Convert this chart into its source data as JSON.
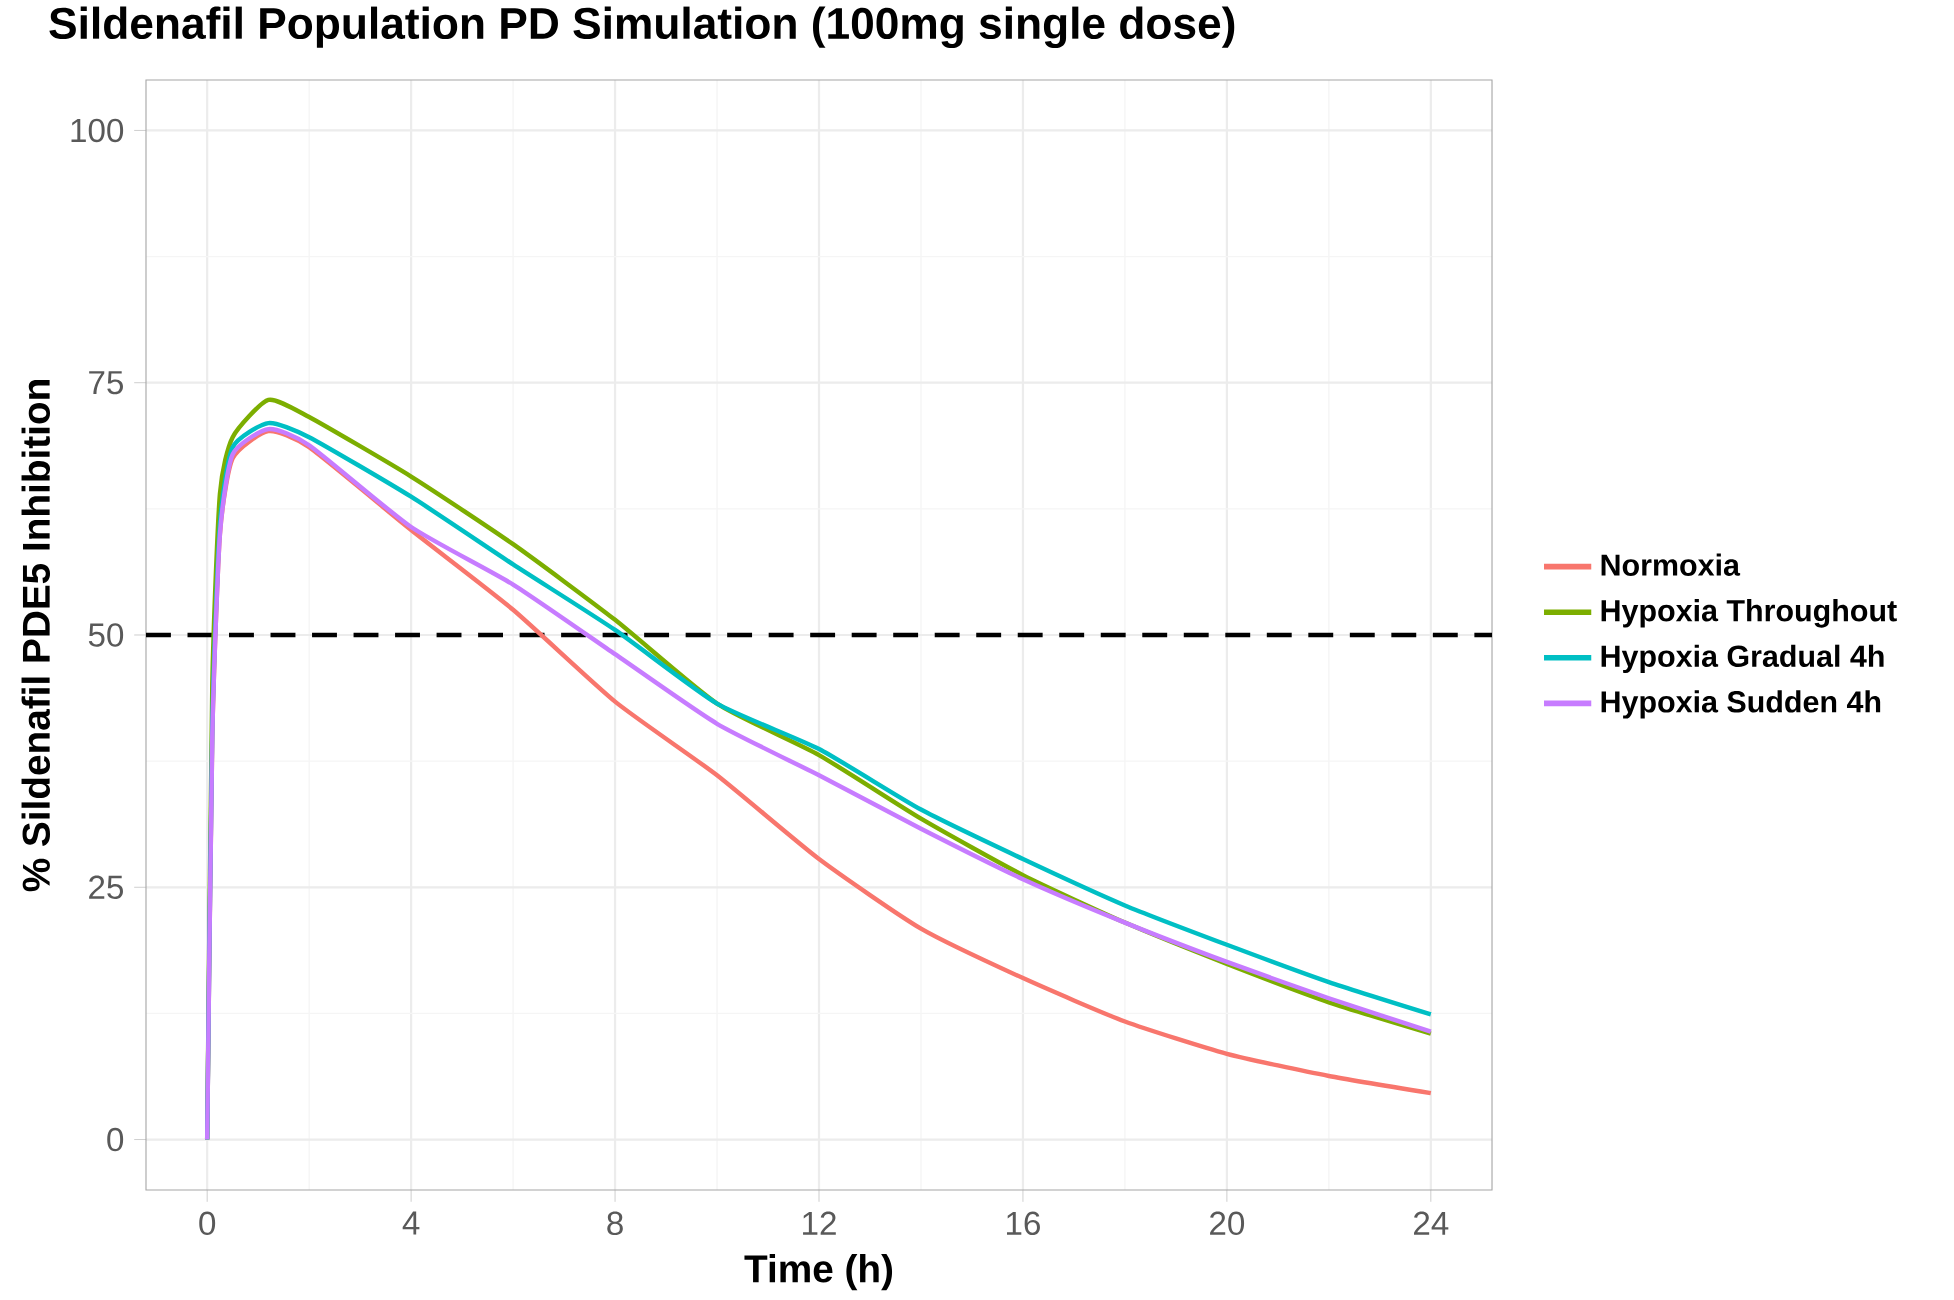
{
  "chart_data": {
    "type": "line",
    "title": "Sildenafil Population PD Simulation (100mg single dose)",
    "xlabel": "Time (h)",
    "ylabel": "% Sildenafil PDE5 Inhibition",
    "x": [
      0,
      0.1,
      0.25,
      0.5,
      1.2,
      2,
      4,
      6,
      8,
      10,
      12,
      14,
      16,
      18,
      20,
      22,
      24
    ],
    "series": [
      {
        "name": "Normoxia",
        "color": "#f8766d",
        "values": [
          0,
          40,
          60,
          67.5,
          70.2,
          68.6,
          60.4,
          52.5,
          43.4,
          36.1,
          27.8,
          20.9,
          16.0,
          11.7,
          8.5,
          6.3,
          4.6
        ]
      },
      {
        "name": "Hypoxia Throughout",
        "color": "#7cae00",
        "values": [
          0,
          45,
          64,
          69.6,
          73.3,
          71.6,
          65.7,
          59.0,
          51.5,
          43.2,
          38.1,
          31.8,
          26.2,
          21.5,
          17.4,
          13.6,
          10.5
        ]
      },
      {
        "name": "Hypoxia Gradual 4h",
        "color": "#00bfc4",
        "values": [
          0,
          41,
          61,
          68.6,
          71.0,
          69.6,
          63.7,
          57.0,
          50.5,
          43.2,
          38.7,
          32.7,
          27.8,
          23.2,
          19.3,
          15.6,
          12.4
        ]
      },
      {
        "name": "Hypoxia Sudden 4h",
        "color": "#c77cff",
        "values": [
          0,
          40,
          60,
          67.9,
          70.4,
          68.8,
          60.7,
          55.0,
          48.1,
          41.2,
          36.1,
          30.8,
          25.8,
          21.5,
          17.6,
          14.0,
          10.7
        ]
      }
    ],
    "xlim": [
      -1.2,
      25.2
    ],
    "ylim": [
      -5,
      105
    ],
    "xticks": [
      0,
      4,
      8,
      12,
      16,
      20,
      24
    ],
    "yticks": [
      0,
      25,
      50,
      75,
      100
    ],
    "grid": true,
    "legend": "right",
    "line_style": "solid",
    "ref_lines": [
      {
        "axis": "y",
        "value": 50,
        "color": "#000000",
        "line_style": "dashed"
      }
    ]
  }
}
